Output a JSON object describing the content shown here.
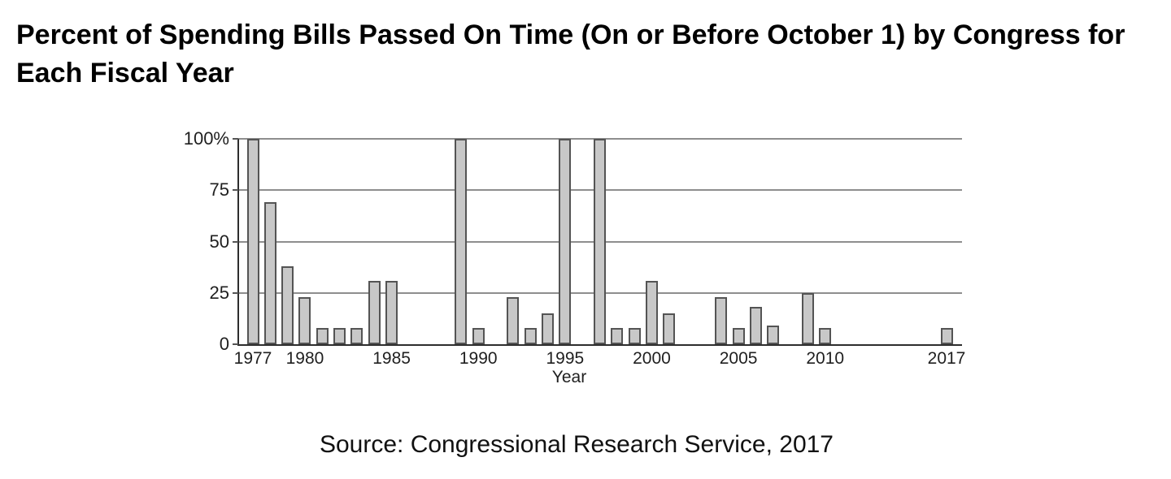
{
  "title": "Percent of Spending Bills Passed On Time (On or Before October 1) by Congress for Each Fiscal Year",
  "source": "Source: Congressional Research Service, 2017",
  "chart_data": {
    "type": "bar",
    "title": "Percent of Spending Bills Passed On Time (On or Before October 1) by Congress for Each Fiscal Year",
    "xlabel": "Year",
    "ylabel": "",
    "ylim": [
      0,
      100
    ],
    "grid": true,
    "legend": "none",
    "bar_fill_color": "#c8c8c8",
    "bar_border_color": "#545454",
    "gridline_color": "#8e8e8e",
    "axis_color": "#2d2d2d",
    "x": [
      1977,
      1978,
      1979,
      1980,
      1981,
      1982,
      1983,
      1984,
      1985,
      1986,
      1987,
      1988,
      1989,
      1990,
      1991,
      1992,
      1993,
      1994,
      1995,
      1996,
      1997,
      1998,
      1999,
      2000,
      2001,
      2002,
      2003,
      2004,
      2005,
      2006,
      2007,
      2008,
      2009,
      2010,
      2011,
      2012,
      2013,
      2014,
      2015,
      2016,
      2017
    ],
    "values": [
      100,
      69,
      38,
      23,
      8,
      8,
      8,
      31,
      31,
      0,
      0,
      0,
      100,
      8,
      0,
      23,
      8,
      15,
      100,
      0,
      100,
      8,
      8,
      31,
      15,
      0,
      0,
      23,
      8,
      18,
      9,
      0,
      25,
      8,
      0,
      0,
      0,
      0,
      0,
      0,
      8
    ],
    "x_tick_labels": [
      "1977",
      "1980",
      "1985",
      "1990",
      "1995",
      "2000",
      "2005",
      "2010",
      "2017"
    ],
    "y_ticks": [
      {
        "label": "100%",
        "value": 100
      },
      {
        "label": "75",
        "value": 75
      },
      {
        "label": "50",
        "value": 50
      },
      {
        "label": "25",
        "value": 25
      },
      {
        "label": "0",
        "value": 0
      }
    ]
  }
}
